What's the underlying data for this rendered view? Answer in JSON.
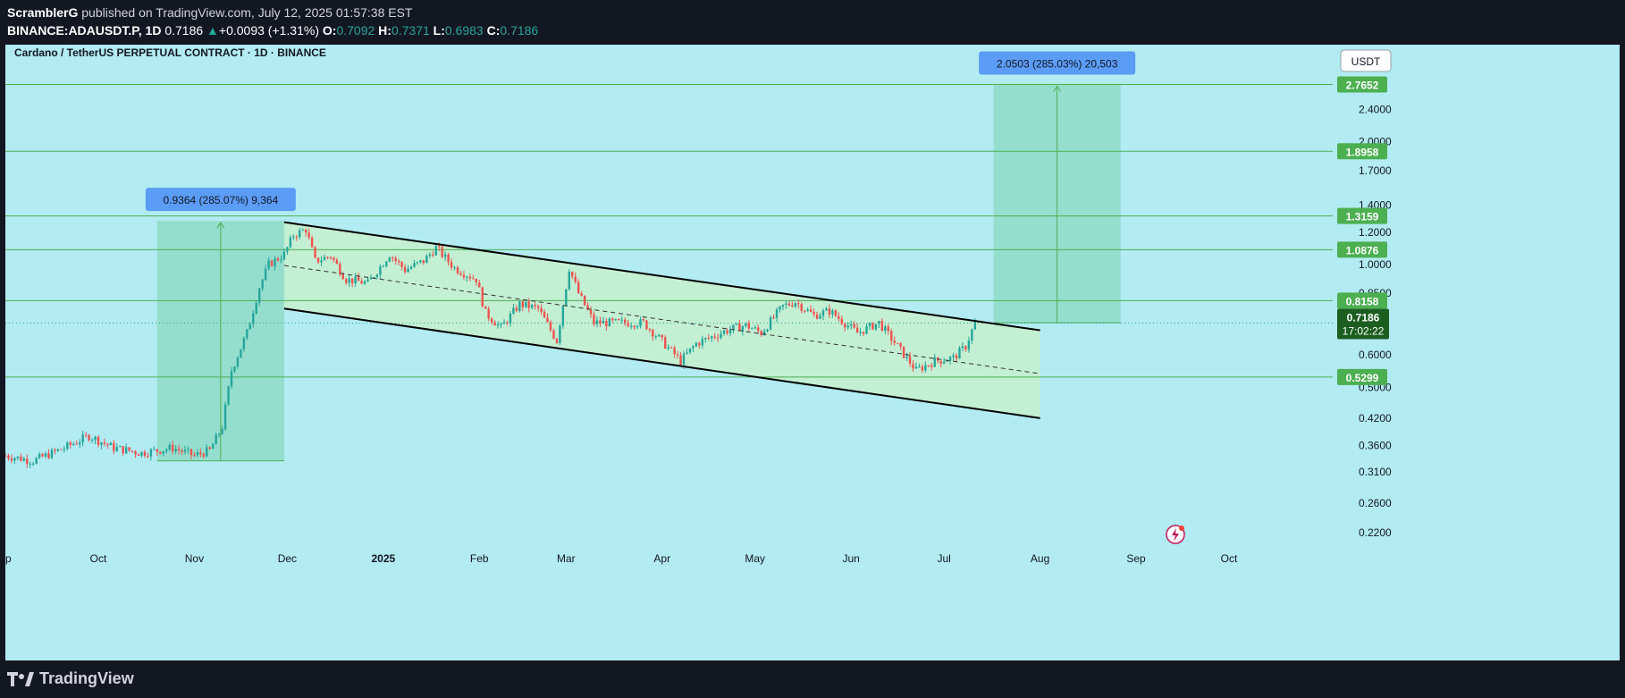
{
  "header": {
    "author": "ScramblerG",
    "published": "published on TradingView.com, July 12, 2025 01:57:38 EST",
    "symbol": "BINANCE:ADAUSDT.P, 1D",
    "last": "0.7186",
    "change": "+0.0093 (+1.31%)",
    "o_label": "O:",
    "o": "0.7092",
    "h_label": "H:",
    "h": "0.7371",
    "l_label": "L:",
    "l": "0.6983",
    "c_label": "C:",
    "c": "0.7186"
  },
  "chart_title": "Cardano / TetherUS PERPETUAL CONTRACT · 1D · BINANCE",
  "currency_button": "USDT",
  "footer": {
    "brand": "TradingView"
  },
  "colors": {
    "background": "#b2ebf2",
    "up": "#26a69a",
    "down": "#ef5350",
    "hline": "#4caf50",
    "measure_fill": "#7dd3b0",
    "channel_fill": "#c8f0c8",
    "label_green": "#4caf50",
    "last_price_bg": "#1b5e20",
    "measure_label": "#5b9cf6"
  },
  "chart_data": {
    "type": "candlestick",
    "title": "Cardano / TetherUS PERPETUAL CONTRACT · 1D · BINANCE",
    "y_scale": "log",
    "ylim": [
      0.2,
      3.0
    ],
    "y_ticks": [
      "2.4000",
      "2.0000",
      "1.7000",
      "1.4000",
      "1.2000",
      "1.0000",
      "0.8500",
      "0.6000",
      "0.5000",
      "0.4200",
      "0.3600",
      "0.3100",
      "0.2600",
      "0.2200"
    ],
    "x_ticks": [
      {
        "label": "ep",
        "date": "2024-09-01"
      },
      {
        "label": "Oct",
        "date": "2024-10-01"
      },
      {
        "label": "Nov",
        "date": "2024-11-01"
      },
      {
        "label": "Dec",
        "date": "2024-12-01"
      },
      {
        "label": "2025",
        "date": "2025-01-01",
        "bold": true
      },
      {
        "label": "Feb",
        "date": "2025-02-01"
      },
      {
        "label": "Mar",
        "date": "2025-03-01"
      },
      {
        "label": "Apr",
        "date": "2025-04-01"
      },
      {
        "label": "May",
        "date": "2025-05-01"
      },
      {
        "label": "Jun",
        "date": "2025-06-01"
      },
      {
        "label": "Jul",
        "date": "2025-07-01"
      },
      {
        "label": "Aug",
        "date": "2025-08-01"
      },
      {
        "label": "Sep",
        "date": "2025-09-01"
      },
      {
        "label": "Oct",
        "date": "2025-10-01"
      }
    ],
    "x_range": [
      "2024-09-01",
      "2025-10-16"
    ],
    "horizontal_levels": [
      "2.7652",
      "1.8958",
      "1.3159",
      "1.0876",
      "0.8158",
      "0.5299"
    ],
    "last_price": {
      "value": "0.7186",
      "countdown": "17:02:22"
    },
    "close_path": [
      [
        "2024-09-01",
        0.34
      ],
      [
        "2024-09-10",
        0.33
      ],
      [
        "2024-09-20",
        0.355
      ],
      [
        "2024-09-28",
        0.38
      ],
      [
        "2024-10-06",
        0.355
      ],
      [
        "2024-10-15",
        0.345
      ],
      [
        "2024-10-25",
        0.355
      ],
      [
        "2024-11-01",
        0.34
      ],
      [
        "2024-11-06",
        0.35
      ],
      [
        "2024-11-10",
        0.4
      ],
      [
        "2024-11-13",
        0.55
      ],
      [
        "2024-11-18",
        0.68
      ],
      [
        "2024-11-22",
        0.88
      ],
      [
        "2024-11-25",
        1.0
      ],
      [
        "2024-11-30",
        1.06
      ],
      [
        "2024-12-03",
        1.18
      ],
      [
        "2024-12-07",
        1.22
      ],
      [
        "2024-12-10",
        1.02
      ],
      [
        "2024-12-15",
        1.05
      ],
      [
        "2024-12-20",
        0.92
      ],
      [
        "2024-12-27",
        0.9
      ],
      [
        "2025-01-03",
        1.06
      ],
      [
        "2025-01-08",
        0.97
      ],
      [
        "2025-01-14",
        1.02
      ],
      [
        "2025-01-18",
        1.1
      ],
      [
        "2025-01-24",
        0.98
      ],
      [
        "2025-01-31",
        0.92
      ],
      [
        "2025-02-03",
        0.76
      ],
      [
        "2025-02-08",
        0.7
      ],
      [
        "2025-02-14",
        0.8
      ],
      [
        "2025-02-20",
        0.78
      ],
      [
        "2025-02-26",
        0.65
      ],
      [
        "2025-03-02",
        0.98
      ],
      [
        "2025-03-05",
        0.85
      ],
      [
        "2025-03-10",
        0.72
      ],
      [
        "2025-03-18",
        0.72
      ],
      [
        "2025-03-26",
        0.72
      ],
      [
        "2025-03-31",
        0.66
      ],
      [
        "2025-04-07",
        0.58
      ],
      [
        "2025-04-12",
        0.64
      ],
      [
        "2025-04-22",
        0.69
      ],
      [
        "2025-04-28",
        0.71
      ],
      [
        "2025-05-03",
        0.68
      ],
      [
        "2025-05-10",
        0.79
      ],
      [
        "2025-05-14",
        0.81
      ],
      [
        "2025-05-20",
        0.75
      ],
      [
        "2025-05-25",
        0.77
      ],
      [
        "2025-06-03",
        0.68
      ],
      [
        "2025-06-10",
        0.72
      ],
      [
        "2025-06-16",
        0.63
      ],
      [
        "2025-06-22",
        0.55
      ],
      [
        "2025-06-28",
        0.58
      ],
      [
        "2025-07-04",
        0.59
      ],
      [
        "2025-07-08",
        0.63
      ],
      [
        "2025-07-11",
        0.72
      ]
    ],
    "annotations": [
      {
        "kind": "measure",
        "label": "0.9364 (285.07%) 9,364",
        "from": {
          "date": "2024-10-20",
          "price": 0.33
        },
        "to": {
          "date": "2024-11-30",
          "price": 1.28
        }
      },
      {
        "kind": "measure",
        "label": "2.0503 (285.03%) 20,503",
        "from": {
          "date": "2025-07-17",
          "price": 0.72
        },
        "to": {
          "date": "2025-08-27",
          "price": 2.7652
        }
      },
      {
        "kind": "channel",
        "upper": [
          {
            "date": "2024-11-30",
            "price": 1.27
          },
          {
            "date": "2025-08-01",
            "price": 0.69
          }
        ],
        "lower": [
          {
            "date": "2024-11-30",
            "price": 0.78
          },
          {
            "date": "2025-08-01",
            "price": 0.42
          }
        ],
        "mid": [
          {
            "date": "2024-11-30",
            "price": 0.995
          },
          {
            "date": "2025-08-01",
            "price": 0.54
          }
        ]
      }
    ]
  }
}
